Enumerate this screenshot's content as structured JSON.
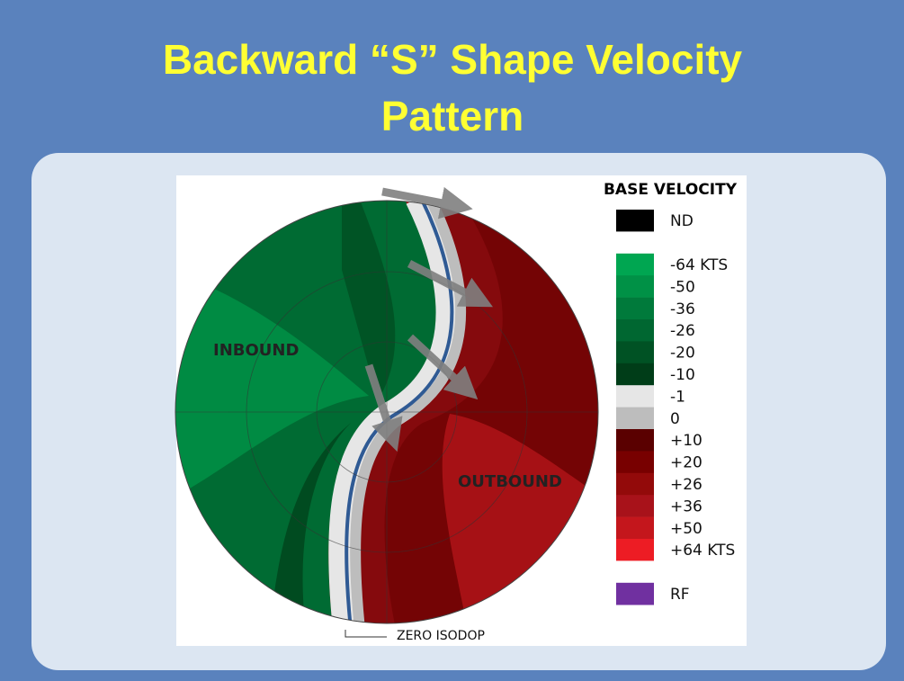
{
  "slide": {
    "title": [
      "Backward “S” Shape Velocity",
      "Pattern"
    ],
    "figure": {
      "inbound_label": "INBOUND",
      "outbound_label": "OUTBOUND",
      "isodop_label": "ZERO ISODOP",
      "legend": {
        "title": "BASE VELOCITY",
        "items": [
          {
            "label": "ND",
            "color": "#000000"
          },
          {
            "color": "#ffffff"
          },
          {
            "label": "-64 KTS",
            "color": "#00a651"
          },
          {
            "label": "-50",
            "color": "#009146"
          },
          {
            "label": "-36",
            "color": "#007a3b"
          },
          {
            "label": "-26",
            "color": "#006731"
          },
          {
            "label": "-20",
            "color": "#005224"
          },
          {
            "label": "-10",
            "color": "#003d18"
          },
          {
            "label": "-1",
            "color": "#e6e6e6"
          },
          {
            "label": "0",
            "color": "#bdbdbd"
          },
          {
            "label": "+10",
            "color": "#5a0000"
          },
          {
            "label": "+20",
            "color": "#780000"
          },
          {
            "label": "+26",
            "color": "#930a0a"
          },
          {
            "label": "+36",
            "color": "#a8121a"
          },
          {
            "label": "+50",
            "color": "#c4161c"
          },
          {
            "label": "+64 KTS",
            "color": "#ed1c24"
          },
          {
            "color": "#ffffff"
          },
          {
            "label": "RF",
            "color": "#7030a0"
          }
        ]
      }
    }
  }
}
